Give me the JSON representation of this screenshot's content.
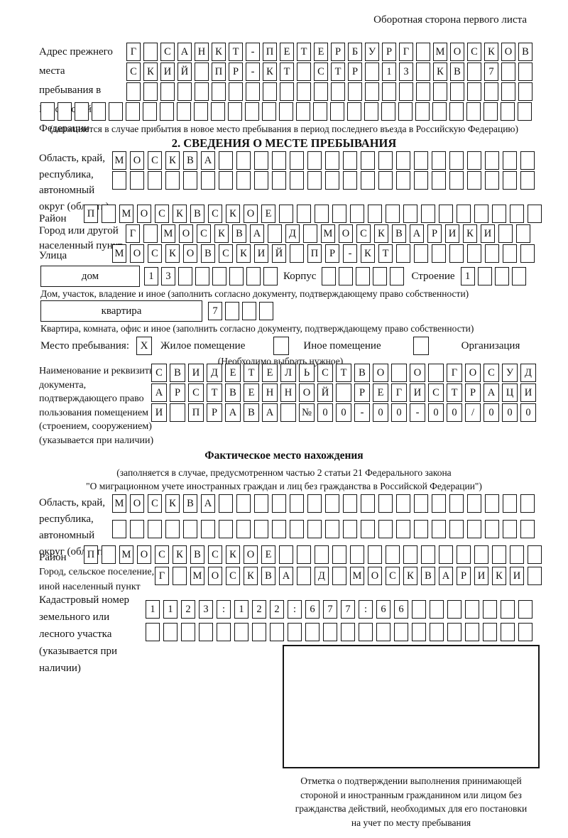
{
  "header": {
    "page_note": "Оборотная сторона первого листа"
  },
  "prev": {
    "label": "Адрес прежнего места пребывания в Российской Федерации",
    "rows": [
      "Г САНКТ-ПЕТЕРБУРГ МОСКОВ",
      "СКИЙ ПР-КТ СТР 13 КВ 7",
      "",
      ""
    ],
    "note": "(заполняется в случае прибытия в новое место пребывания в период последнего въезда в Российскую Федерацию)"
  },
  "s2": {
    "title": "2. СВЕДЕНИЯ О МЕСТЕ ПРЕБЫВАНИЯ",
    "region": {
      "label": "Область, край, республика, автономный округ (область)",
      "rows": [
        "МОСКВА",
        ""
      ]
    },
    "district": {
      "label": "Район",
      "value": "П МОСКВСКОЕ"
    },
    "city": {
      "label": "Город или другой населенный пункт",
      "value": "Г МОСКВА Д МОСКВАРИКИ"
    },
    "street": {
      "label": "Улица",
      "value": "МОСКОВСКИЙ ПР-КТ"
    },
    "house": {
      "box_label": "дом",
      "value": "13",
      "korpus_label": "Корпус",
      "korpus_value": "",
      "stroenie_label": "Строение",
      "stroenie_value": "1"
    },
    "house_note": "Дом, участок, владение и иное (заполнить согласно документу, подтверждающему право собственности)",
    "apartment": {
      "box_label": "квартира",
      "value": "7"
    },
    "apartment_note": "Квартира, комната, офис и иное (заполнить согласно документу, подтверждающему право собственности)",
    "stay": {
      "label": "Место пребывания:",
      "options": [
        {
          "label": "Жилое помещение",
          "mark": "X"
        },
        {
          "label": "Иное помещение",
          "mark": ""
        },
        {
          "label": "Организация",
          "mark": ""
        }
      ],
      "note": "(Необходимо выбрать нужное)"
    },
    "doc": {
      "label": "Наименование и реквизиты документа, подтверждающего право пользования помещением (строением, сооружением) (указывается при наличии)",
      "rows": [
        "СВИДЕТЕЛЬСТВО О ГОСУД",
        "АРСТВЕННОЙ РЕГИСТРАЦИ",
        "И ПРАВА №00-00-00/000"
      ]
    }
  },
  "fact": {
    "title": "Фактическое место нахождения",
    "note1": "(заполняется в случае, предусмотренном частью 2 статьи 21 Федерального закона",
    "note2": "\"О миграционном учете иностранных граждан и лиц без гражданства в Российской Федерации\")",
    "region": {
      "label": "Область, край, республика, автономный округ (область)",
      "rows": [
        "МОСКВА",
        ""
      ]
    },
    "district": {
      "label": "Район",
      "value": "П МОСКВСКОЕ"
    },
    "city": {
      "label": "Город, сельское поселение, иной населенный пункт",
      "value": "Г МОСКВА Д МОСКВАРИКИ"
    },
    "cadastral": {
      "label": "Кадастровый номер земельного или лесного участка (указывается при наличии)",
      "rows": [
        "1123:122:677:66",
        ""
      ]
    }
  },
  "confirmation": {
    "note": "Отметка о подтверждении выполнения принимающей стороной и иностранным гражданином или лицом без гражданства действий, необходимых для его постановки на учет по месту пребывания"
  }
}
